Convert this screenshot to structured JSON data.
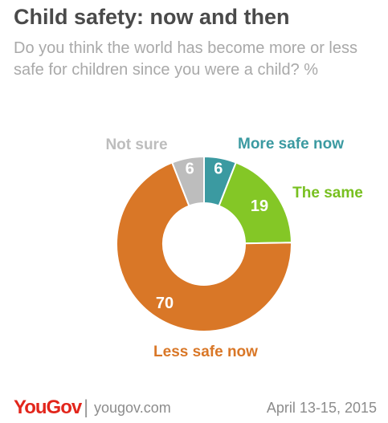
{
  "header": {
    "title": "Child safety: now and then",
    "subtitle": "Do you think the world has become more or less safe for children since you were a child? %"
  },
  "chart_data": {
    "type": "pie",
    "donut": true,
    "title": "Child safety: now and then",
    "subtitle": "Do you think the world has become more or less safe for children since you were a child? %",
    "slices": [
      {
        "label": "More safe now",
        "value": 6,
        "color": "#3b9aa1",
        "label_color": "#3b9aa1"
      },
      {
        "label": "The same",
        "value": 19,
        "color": "#84c726",
        "label_color": "#78c020"
      },
      {
        "label": "Less safe now",
        "value": 70,
        "color": "#d97727",
        "label_color": "#d97727"
      },
      {
        "label": "Not sure",
        "value": 6,
        "color": "#bdbdbd",
        "label_color": "#bdbdbd"
      }
    ]
  },
  "footer": {
    "logo": "YouGov",
    "separator": "|",
    "site": "yougov.com",
    "date": "April 13-15, 2015"
  }
}
